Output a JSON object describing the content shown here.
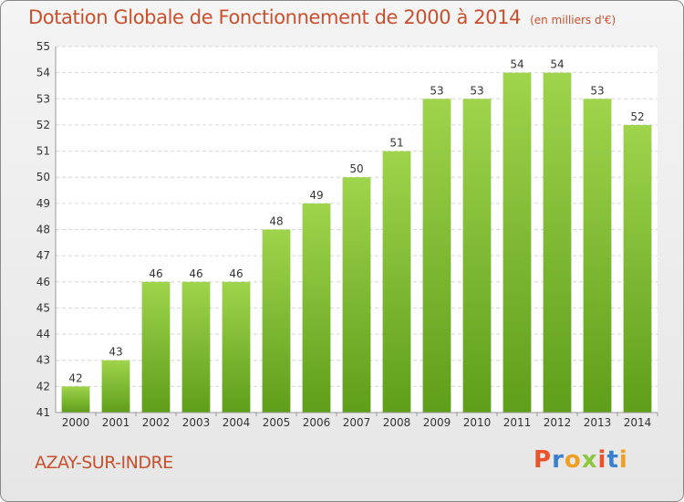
{
  "header": {
    "title": "Dotation Globale de Fonctionnement de 2000 à 2014",
    "subtitle": "(en milliers d'€)"
  },
  "footer": {
    "place": "AZAY-SUR-INDRE",
    "logo": "Proxiti"
  },
  "colors": {
    "title": "#c8502d",
    "bar_top": "#9fd44c",
    "bar_bottom": "#5f9e1a",
    "logo_letters": [
      "#e9522a",
      "#3b7fd0",
      "#f0a020",
      "#8dc63f",
      "#e9522a",
      "#3b7fd0",
      "#f0a020"
    ]
  },
  "chart_data": {
    "type": "bar",
    "title": "Dotation Globale de Fonctionnement de 2000 à 2014",
    "subtitle": "(en milliers d'€)",
    "categories": [
      "2000",
      "2001",
      "2002",
      "2003",
      "2004",
      "2005",
      "2006",
      "2007",
      "2008",
      "2009",
      "2010",
      "2011",
      "2012",
      "2013",
      "2014"
    ],
    "values": [
      42,
      43,
      46,
      46,
      46,
      48,
      49,
      50,
      51,
      53,
      53,
      54,
      54,
      53,
      52
    ],
    "ylim": [
      41,
      55
    ],
    "yticks": [
      41,
      42,
      43,
      44,
      45,
      46,
      47,
      48,
      49,
      50,
      51,
      52,
      53,
      54,
      55
    ],
    "grid": true,
    "data_labels": true
  }
}
